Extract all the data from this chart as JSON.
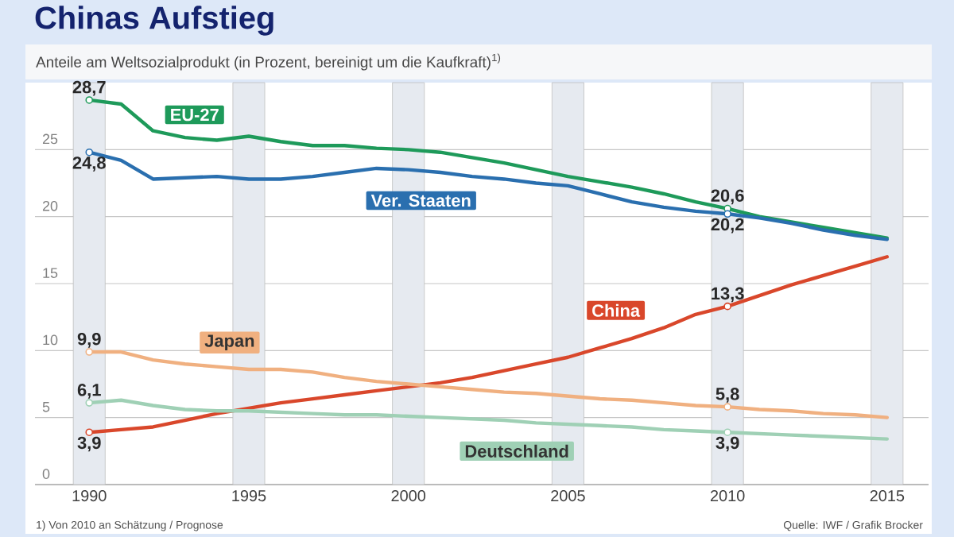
{
  "chart_data": {
    "type": "line",
    "title": "Chinas Aufstieg",
    "subtitle": "Anteile am Weltsozialprodukt (in Prozent, bereinigt um die Kaufkraft)$^{1)}$",
    "x": [
      1990,
      1991,
      1992,
      1993,
      1994,
      1995,
      1996,
      1997,
      1998,
      1999,
      2000,
      2001,
      2002,
      2003,
      2004,
      2005,
      2006,
      2007,
      2008,
      2009,
      2010,
      2011,
      2012,
      2013,
      2014,
      2015
    ],
    "series": [
      {
        "name": "EU-27",
        "color": "#1e9a5a",
        "values": [
          28.7,
          28.4,
          26.4,
          25.9,
          25.7,
          26.0,
          25.6,
          25.3,
          25.3,
          25.1,
          25.0,
          24.8,
          24.4,
          24.0,
          23.5,
          23.0,
          22.6,
          22.2,
          21.7,
          21.1,
          20.6,
          20.0,
          19.6,
          19.2,
          18.8,
          18.4
        ],
        "value_labels": [
          "28,7",
          null,
          null,
          null,
          null,
          null,
          null,
          null,
          null,
          null,
          null,
          null,
          null,
          null,
          null,
          null,
          null,
          null,
          null,
          null,
          "20,6",
          null,
          null,
          null,
          null,
          null
        ]
      },
      {
        "name": "Ver. Staaten",
        "color": "#2a6faf",
        "values": [
          24.8,
          24.2,
          22.8,
          22.9,
          23.0,
          22.8,
          22.8,
          23.0,
          23.3,
          23.6,
          23.5,
          23.3,
          23.0,
          22.8,
          22.5,
          22.3,
          21.7,
          21.1,
          20.7,
          20.4,
          20.2,
          19.9,
          19.5,
          19.0,
          18.6,
          18.3
        ],
        "value_labels": [
          "24,8",
          null,
          null,
          null,
          null,
          null,
          null,
          null,
          null,
          null,
          null,
          null,
          null,
          null,
          null,
          null,
          null,
          null,
          null,
          null,
          "20,2",
          null,
          null,
          null,
          null,
          null
        ]
      },
      {
        "name": "China",
        "color": "#d9472b",
        "values": [
          3.9,
          4.1,
          4.3,
          4.8,
          5.3,
          5.7,
          6.1,
          6.4,
          6.7,
          7.0,
          7.3,
          7.6,
          8.0,
          8.5,
          9.0,
          9.5,
          10.2,
          10.9,
          11.7,
          12.7,
          13.3,
          14.1,
          14.9,
          15.6,
          16.3,
          17.0
        ],
        "value_labels": [
          "3,9",
          null,
          null,
          null,
          null,
          null,
          null,
          null,
          null,
          null,
          null,
          null,
          null,
          null,
          null,
          null,
          null,
          null,
          null,
          null,
          "13,3",
          null,
          null,
          null,
          null,
          null
        ]
      },
      {
        "name": "Japan",
        "color": "#f0b080",
        "values": [
          9.9,
          9.9,
          9.3,
          9.0,
          8.8,
          8.6,
          8.6,
          8.4,
          8.0,
          7.7,
          7.5,
          7.3,
          7.1,
          6.9,
          6.8,
          6.6,
          6.4,
          6.3,
          6.1,
          5.9,
          5.8,
          5.6,
          5.5,
          5.3,
          5.2,
          5.0
        ],
        "value_labels": [
          "9,9",
          null,
          null,
          null,
          null,
          null,
          null,
          null,
          null,
          null,
          null,
          null,
          null,
          null,
          null,
          null,
          null,
          null,
          null,
          null,
          "5,8",
          null,
          null,
          null,
          null,
          null
        ]
      },
      {
        "name": "Deutschland",
        "color": "#9fd0b5",
        "values": [
          6.1,
          6.3,
          5.9,
          5.6,
          5.5,
          5.5,
          5.4,
          5.3,
          5.2,
          5.2,
          5.1,
          5.0,
          4.9,
          4.8,
          4.6,
          4.5,
          4.4,
          4.3,
          4.1,
          4.0,
          3.9,
          3.8,
          3.7,
          3.6,
          3.5,
          3.4
        ],
        "value_labels": [
          "6,1",
          null,
          null,
          null,
          null,
          null,
          null,
          null,
          null,
          null,
          null,
          null,
          null,
          null,
          null,
          null,
          null,
          null,
          null,
          null,
          "3,9",
          null,
          null,
          null,
          null,
          null
        ]
      }
    ],
    "xlim": [
      1988.3,
      2016.3
    ],
    "ylim": [
      0,
      30
    ],
    "xticks": [
      1990,
      1995,
      2000,
      2005,
      2010,
      2015
    ],
    "yticks": [
      0,
      5,
      10,
      15,
      20,
      25
    ],
    "grid": "y",
    "bands": [
      {
        "axis": "x",
        "from": 1989.5,
        "to": 1990.5,
        "color": "#e6eaf0"
      },
      {
        "axis": "x",
        "from": 1994.5,
        "to": 1995.5,
        "color": "#e6eaf0"
      },
      {
        "axis": "x",
        "from": 1999.5,
        "to": 2000.5,
        "color": "#e6eaf0"
      },
      {
        "axis": "x",
        "from": 2004.5,
        "to": 2005.5,
        "color": "#e6eaf0"
      },
      {
        "axis": "x",
        "from": 2009.5,
        "to": 2010.5,
        "color": "#e6eaf0"
      },
      {
        "axis": "x",
        "from": 2014.5,
        "to": 2015.5,
        "color": "#e6eaf0"
      }
    ],
    "annotations": [
      "1) Von 2010 an Schätzung / Prognose",
      "Quelle: IWF / Grafik Brocker"
    ]
  }
}
